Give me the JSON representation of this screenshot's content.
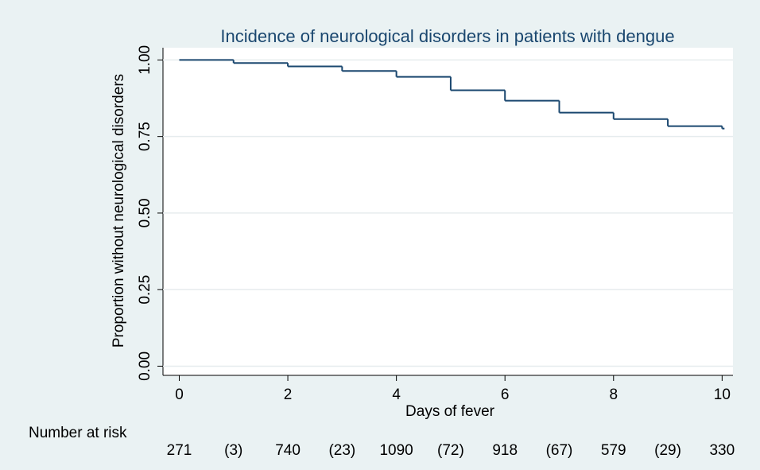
{
  "chart_data": {
    "type": "step",
    "title": "Incidence of neurological disorders in patients with dengue",
    "x_label": "Days of fever",
    "y_label": "Proportion without neurological disorders",
    "x": [
      0,
      1,
      2,
      3,
      4,
      5,
      6,
      7,
      8,
      9,
      10
    ],
    "values": [
      1.0,
      0.99,
      0.979,
      0.964,
      0.945,
      0.901,
      0.867,
      0.828,
      0.807,
      0.784,
      0.776
    ],
    "color": "#1a476f",
    "xlim": [
      -0.3,
      10.2
    ],
    "ylim": [
      -0.03,
      1.04
    ],
    "xticks": [
      0,
      2,
      4,
      6,
      8,
      10
    ],
    "yticks": [
      {
        "value": 0,
        "label": "0.00"
      },
      {
        "value": 0.25,
        "label": "0.25"
      },
      {
        "value": 0.5,
        "label": "0.50"
      },
      {
        "value": 0.75,
        "label": "0.75"
      },
      {
        "value": 1,
        "label": "1.00"
      }
    ],
    "grid": true,
    "risk_table": {
      "label": "Number at risk",
      "entries": [
        "271",
        "(3)",
        "740",
        "(23)",
        "1090",
        "(72)",
        "918",
        "(67)",
        "579",
        "(29)",
        "330"
      ]
    }
  }
}
